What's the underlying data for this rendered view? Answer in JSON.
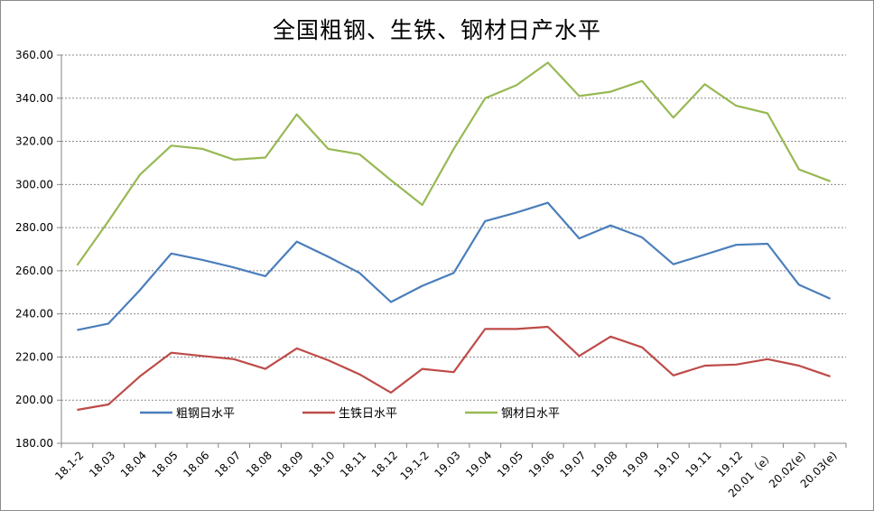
{
  "chart_data": {
    "type": "line",
    "title": "全国粗钢、生铁、钢材日产水平",
    "xlabel": "",
    "ylabel": "",
    "ylim": [
      180,
      360
    ],
    "yticks": [
      "180.00",
      "200.00",
      "220.00",
      "240.00",
      "260.00",
      "280.00",
      "300.00",
      "320.00",
      "340.00",
      "360.00"
    ],
    "grid": true,
    "legend_position": "bottom-inside",
    "categories": [
      "18.1-2",
      "18.03",
      "18.04",
      "18.05",
      "18.06",
      "18.07",
      "18.08",
      "18.09",
      "18.10",
      "18.11",
      "18.12",
      "19.1-2",
      "19.03",
      "19.04",
      "19.05",
      "19.06",
      "19.07",
      "19.08",
      "19.09",
      "19.10",
      "19.11",
      "19.12",
      "20.01（e）",
      "20.02(e)",
      "20.03(e)"
    ],
    "series": [
      {
        "name": "粗钢日水平",
        "color": "#4a7ebb",
        "values": [
          232.5,
          235.5,
          251,
          268,
          265,
          261.5,
          257.5,
          273.5,
          266.5,
          259,
          245.5,
          253,
          259,
          283,
          287,
          291.5,
          275,
          281,
          275.5,
          263,
          267.5,
          272,
          272.5,
          253.5,
          247
        ]
      },
      {
        "name": "生铁日水平",
        "color": "#be4b48",
        "values": [
          195.5,
          198,
          211,
          222,
          220.5,
          219,
          214.5,
          224,
          218.5,
          212,
          203.5,
          214.5,
          213,
          233,
          233,
          234,
          220.5,
          229.5,
          224.5,
          211.5,
          216,
          216.5,
          219,
          216,
          211
        ]
      },
      {
        "name": "钢材日水平",
        "color": "#98b954",
        "values": [
          262.5,
          283,
          304.5,
          318,
          316.5,
          311.5,
          312.5,
          332.5,
          316.5,
          314,
          302,
          290.5,
          316.5,
          340,
          346,
          356.5,
          341,
          343,
          348,
          331,
          346.5,
          336.5,
          333,
          307,
          301.5
        ]
      }
    ]
  }
}
